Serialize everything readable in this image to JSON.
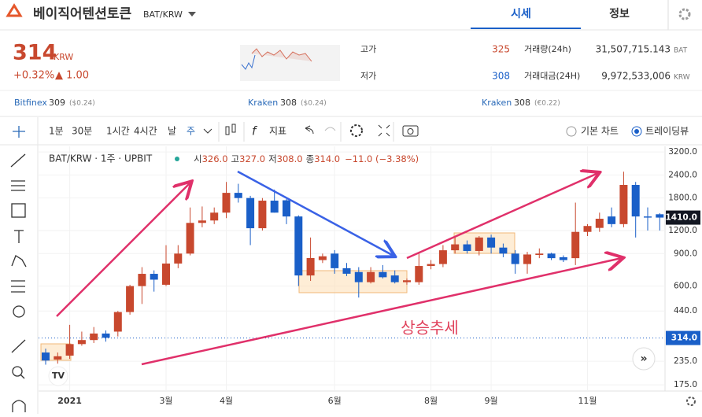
{
  "header": {
    "coin_name": "베이직어텐션토큰",
    "pair": "BAT/KRW",
    "tabs": [
      "시세",
      "정보"
    ]
  },
  "price": {
    "value": "314",
    "unit": "KRW",
    "change_pct": "+0.32%",
    "change": "▲ 1.00"
  },
  "stats": {
    "high_label": "고가",
    "high": "325",
    "low_label": "저가",
    "low": "308",
    "volume_label": "거래량(24h)",
    "volume": "31,507,715.143",
    "volume_unit": "BAT",
    "amount_label": "거래대금(24H)",
    "amount": "9,972,533,006",
    "amount_unit": "KRW"
  },
  "exchanges": [
    {
      "name": "Bitfinex",
      "price": "309",
      "diff": "($0.24)"
    },
    {
      "name": "Kraken",
      "price": "308",
      "diff": "($0.24)"
    },
    {
      "name": "Kraken",
      "price": "308",
      "diff": "(€0.22)"
    }
  ],
  "toolbar": {
    "intervals": [
      "1분",
      "30분",
      "1시간",
      "4시간",
      "날",
      "주"
    ],
    "indicator": "지표",
    "options": [
      "기본 차트",
      "트레이딩뷰"
    ]
  },
  "legend": {
    "symbol": "BAT/KRW · 1주 · UPBIT",
    "open_label": "시",
    "open": "326.0",
    "high_label": "고",
    "high": "327.0",
    "low_label": "저",
    "low": "308.0",
    "close_label": "종",
    "close": "314.0",
    "change": "−11.0 (−3.38%)"
  },
  "chart_data": {
    "type": "candlestick",
    "log_scale": true,
    "up_color": "#c8482e",
    "down_color": "#1a5fc8",
    "open": [
      262,
      240,
      252,
      291,
      306,
      332,
      340,
      434,
      600,
      699,
      610,
      795,
      900,
      1320,
      1360,
      1500,
      1920,
      1800,
      1235,
      1742,
      1750,
      1430,
      685,
      830,
      900,
      750,
      715,
      630,
      715,
      685,
      630,
      630,
      771,
      790,
      938,
      1010,
      930,
      1100,
      970,
      900,
      790,
      885,
      900,
      860,
      850,
      1180,
      1240,
      1430,
      1300,
      2120,
      1430,
      1470
    ],
    "high": [
      275,
      262,
      370,
      340,
      360,
      345,
      440,
      610,
      760,
      730,
      1000,
      1000,
      1600,
      1620,
      1600,
      2200,
      2150,
      1850,
      1800,
      2000,
      1780,
      1450,
      1100,
      900,
      940,
      800,
      760,
      760,
      780,
      730,
      660,
      900,
      830,
      1000,
      1100,
      1060,
      1120,
      1140,
      1020,
      940,
      920,
      960,
      910,
      880,
      1700,
      1300,
      1500,
      1600,
      2500,
      2200,
      1600,
      1490
    ],
    "low": [
      225,
      228,
      242,
      285,
      295,
      300,
      320,
      420,
      480,
      560,
      600,
      750,
      880,
      1250,
      1300,
      1400,
      1700,
      1000,
      1200,
      1500,
      1300,
      600,
      640,
      800,
      700,
      680,
      520,
      620,
      660,
      620,
      610,
      610,
      740,
      760,
      900,
      900,
      880,
      900,
      860,
      700,
      700,
      850,
      830,
      810,
      780,
      1120,
      1180,
      1250,
      1250,
      1100,
      1200,
      1200
    ],
    "close": [
      237,
      250,
      291,
      306,
      332,
      315,
      434,
      600,
      699,
      650,
      795,
      900,
      1320,
      1360,
      1500,
      1920,
      1800,
      1235,
      1742,
      1500,
      1430,
      685,
      851,
      870,
      750,
      700,
      630,
      715,
      670,
      630,
      645,
      771,
      790,
      938,
      1010,
      930,
      1100,
      970,
      900,
      790,
      890,
      900,
      850,
      830,
      1180,
      1270,
      1390,
      1300,
      2120,
      1430,
      1410,
      1410
    ],
    "ylim": [
      162,
      3430
    ],
    "yticks": [
      {
        "value": 3200,
        "label": "3200.0"
      },
      {
        "value": 2400,
        "label": "2400.0"
      },
      {
        "value": 1800,
        "label": "1800.0"
      },
      {
        "value": 1200,
        "label": "1200.0"
      },
      {
        "value": 900,
        "label": "900.0"
      },
      {
        "value": 600,
        "label": "600.0"
      },
      {
        "value": 440,
        "label": "440.0"
      },
      {
        "value": 235,
        "label": "235.0"
      },
      {
        "value": 175,
        "label": "175.0"
      }
    ],
    "last_price": {
      "value": 1410,
      "label": "1410.0"
    },
    "reference_price": {
      "value": 314,
      "label": "314.0"
    },
    "x_labels": [
      "2021",
      "3월",
      "4월",
      "6월",
      "8월",
      "9월",
      "11월"
    ],
    "annotation": "상승추세"
  }
}
